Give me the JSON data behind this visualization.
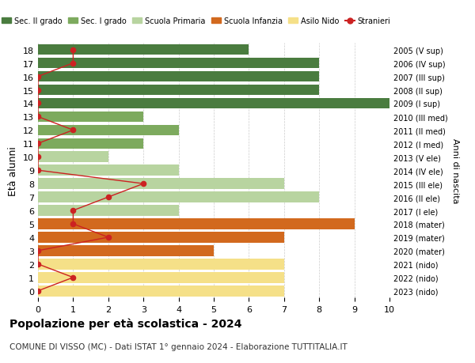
{
  "ages": [
    18,
    17,
    16,
    15,
    14,
    13,
    12,
    11,
    10,
    9,
    8,
    7,
    6,
    5,
    4,
    3,
    2,
    1,
    0
  ],
  "right_labels": [
    "2005 (V sup)",
    "2006 (IV sup)",
    "2007 (III sup)",
    "2008 (II sup)",
    "2009 (I sup)",
    "2010 (III med)",
    "2011 (II med)",
    "2012 (I med)",
    "2013 (V ele)",
    "2014 (IV ele)",
    "2015 (III ele)",
    "2016 (II ele)",
    "2017 (I ele)",
    "2018 (mater)",
    "2019 (mater)",
    "2020 (mater)",
    "2021 (nido)",
    "2022 (nido)",
    "2023 (nido)"
  ],
  "bar_values": [
    6,
    8,
    8,
    8,
    10,
    3,
    4,
    3,
    2,
    4,
    7,
    8,
    4,
    9,
    7,
    5,
    7,
    7,
    7
  ],
  "bar_colors": [
    "#4a7c3f",
    "#4a7c3f",
    "#4a7c3f",
    "#4a7c3f",
    "#4a7c3f",
    "#7daa5e",
    "#7daa5e",
    "#7daa5e",
    "#b8d4a0",
    "#b8d4a0",
    "#b8d4a0",
    "#b8d4a0",
    "#b8d4a0",
    "#d2691e",
    "#d2691e",
    "#d2691e",
    "#f5e088",
    "#f5e088",
    "#f5e088"
  ],
  "stranieri_values": [
    1,
    1,
    0,
    0,
    0,
    0,
    1,
    0,
    0,
    0,
    3,
    2,
    1,
    1,
    2,
    0,
    0,
    1,
    0
  ],
  "stranieri_color": "#cc2222",
  "legend_labels": [
    "Sec. II grado",
    "Sec. I grado",
    "Scuola Primaria",
    "Scuola Infanzia",
    "Asilo Nido",
    "Stranieri"
  ],
  "legend_colors": [
    "#4a7c3f",
    "#7daa5e",
    "#b8d4a0",
    "#d2691e",
    "#f5e088",
    "#cc2222"
  ],
  "xlabel": "",
  "ylabel": "Età alunni",
  "right_ylabel": "Anni di nascita",
  "title": "Popolazione per età scolastica - 2024",
  "subtitle": "COMUNE DI VISSO (MC) - Dati ISTAT 1° gennaio 2024 - Elaborazione TUTTITALIA.IT",
  "xlim": [
    0,
    10
  ],
  "background_color": "#ffffff",
  "grid_color": "#cccccc"
}
